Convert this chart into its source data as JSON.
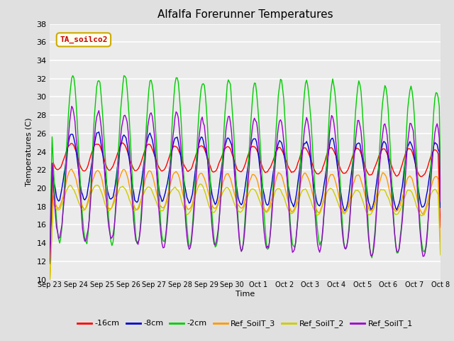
{
  "title": "Alfalfa Forerunner Temperatures",
  "xlabel": "Time",
  "ylabel": "Temperatures (C)",
  "ylim": [
    10,
    38
  ],
  "yticks": [
    10,
    12,
    14,
    16,
    18,
    20,
    22,
    24,
    26,
    28,
    30,
    32,
    34,
    36,
    38
  ],
  "annotation_text": "TA_soilco2",
  "annotation_color": "#cc0000",
  "annotation_box_color": "#ffffee",
  "annotation_box_edge": "#ccaa00",
  "bg_color": "#e0e0e0",
  "plot_bg_color": "#ebebeb",
  "grid_color": "#ffffff",
  "series": [
    {
      "label": "-16cm",
      "color": "#ff0000"
    },
    {
      "label": "-8cm",
      "color": "#0000cc"
    },
    {
      "label": "-2cm",
      "color": "#00cc00"
    },
    {
      "label": "Ref_SoilT_3",
      "color": "#ff9900"
    },
    {
      "label": "Ref_SoilT_2",
      "color": "#cccc00"
    },
    {
      "label": "Ref_SoilT_1",
      "color": "#9900cc"
    }
  ],
  "x_tick_labels": [
    "Sep 23",
    "Sep 24",
    "Sep 25",
    "Sep 26",
    "Sep 27",
    "Sep 28",
    "Sep 29",
    "Sep 30",
    "Oct 1",
    "Oct 2",
    "Oct 3",
    "Oct 4",
    "Oct 5",
    "Oct 6",
    "Oct 7",
    "Oct 8"
  ],
  "n_days": 15,
  "pts_per_day": 24
}
